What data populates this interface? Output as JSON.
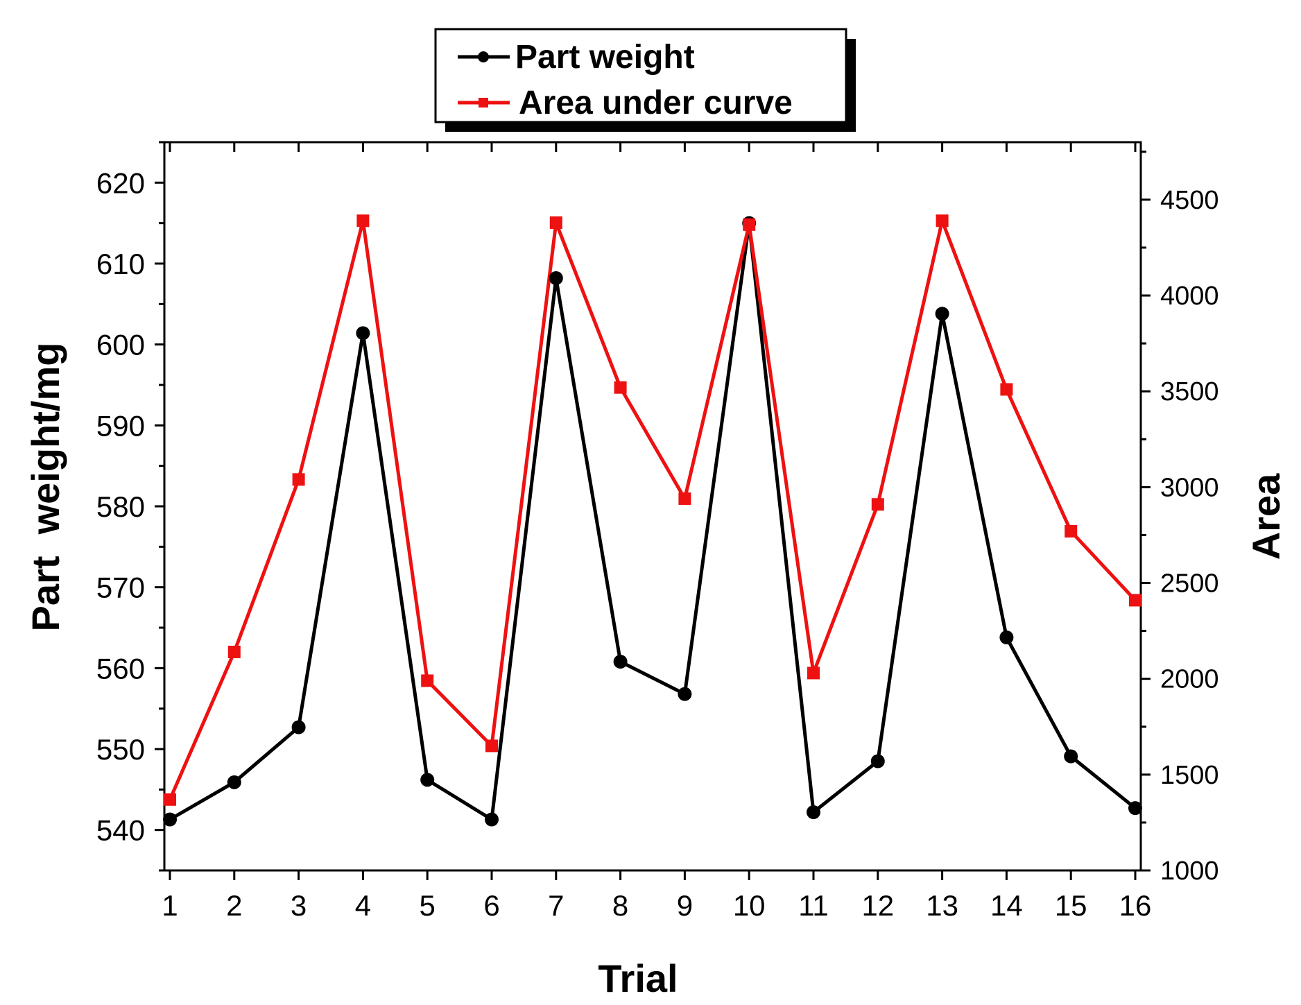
{
  "chart_data": {
    "type": "line",
    "xlabel": "Trial",
    "ylabel": "Part  weight/mg",
    "y2label": "Area",
    "x": [
      1,
      2,
      3,
      4,
      5,
      6,
      7,
      8,
      9,
      10,
      11,
      12,
      13,
      14,
      15,
      16
    ],
    "xlim": [
      1,
      16
    ],
    "ylim": [
      535,
      625
    ],
    "y2lim": [
      1000,
      4800
    ],
    "yticks": [
      540,
      550,
      560,
      570,
      580,
      590,
      600,
      610,
      620
    ],
    "y2ticks": [
      1000,
      1500,
      2000,
      2500,
      3000,
      3500,
      4000,
      4500
    ],
    "legend_position": "top-center",
    "grid": false,
    "series": [
      {
        "name": "Part weight",
        "axis": "left",
        "color": "#000000",
        "marker": "circle",
        "values": [
          541.3,
          545.9,
          552.7,
          601.4,
          546.2,
          541.3,
          608.2,
          560.8,
          556.8,
          615.0,
          542.2,
          548.5,
          603.8,
          563.8,
          549.1,
          542.7
        ]
      },
      {
        "name": "Area under curve",
        "axis": "right",
        "color": "#ee1111",
        "marker": "square",
        "values": [
          1370,
          2140,
          3040,
          4390,
          1990,
          1650,
          4380,
          3520,
          2940,
          4370,
          2030,
          2910,
          4390,
          3510,
          2770,
          2410
        ]
      }
    ]
  }
}
